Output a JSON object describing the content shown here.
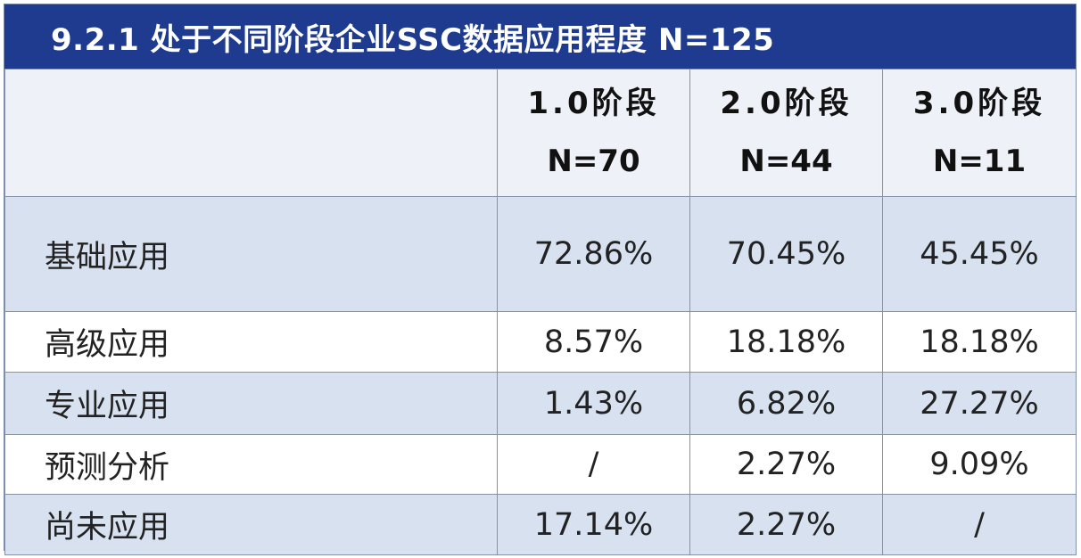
{
  "title": "9.2.1 处于不同阶段企业SSC数据应用程度 N=125",
  "columns": [
    {
      "name": "1.0阶段",
      "n": "N=70"
    },
    {
      "name": "2.0阶段",
      "n": "N=44"
    },
    {
      "name": "3.0阶段",
      "n": "N=11"
    }
  ],
  "rows": [
    {
      "label": "基础应用",
      "values": [
        "72.86%",
        "70.45%",
        "45.45%"
      ]
    },
    {
      "label": "高级应用",
      "values": [
        "8.57%",
        "18.18%",
        "18.18%"
      ]
    },
    {
      "label": "专业应用",
      "values": [
        "1.43%",
        "6.82%",
        "27.27%"
      ]
    },
    {
      "label": "预测分析",
      "values": [
        "/",
        "2.27%",
        "9.09%"
      ]
    },
    {
      "label": "尚未应用",
      "values": [
        "17.14%",
        "2.27%",
        "/"
      ]
    }
  ],
  "colors": {
    "header_bg": "#1f3b8f",
    "row_shade": "#d7e1f0",
    "header_row_bg": "#eef2f8"
  }
}
